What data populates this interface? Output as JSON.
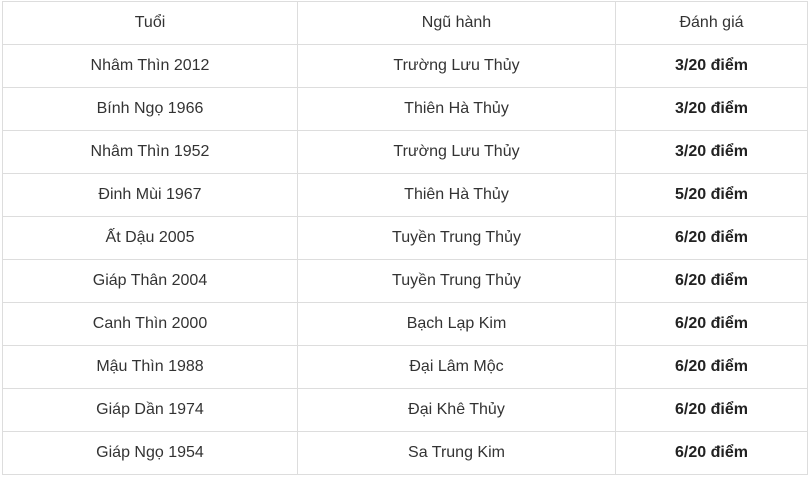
{
  "table": {
    "headers": [
      "Tuổi",
      "Ngũ hành",
      "Đánh giá"
    ],
    "rows": [
      [
        "Nhâm Thìn 2012",
        "Trường Lưu Thủy",
        "3/20 điểm"
      ],
      [
        "Bính Ngọ 1966",
        "Thiên Hà Thủy",
        "3/20 điểm"
      ],
      [
        "Nhâm Thìn 1952",
        "Trường Lưu Thủy",
        "3/20 điểm"
      ],
      [
        "Đinh Mùi 1967",
        "Thiên Hà Thủy",
        "5/20 điểm"
      ],
      [
        "Ất Dậu 2005",
        "Tuyền Trung Thủy",
        "6/20 điểm"
      ],
      [
        "Giáp Thân 2004",
        "Tuyền Trung Thủy",
        "6/20 điểm"
      ],
      [
        "Canh Thìn 2000",
        "Bạch Lạp Kim",
        "6/20 điểm"
      ],
      [
        "Mậu Thìn 1988",
        "Đại Lâm Mộc",
        "6/20 điểm"
      ],
      [
        "Giáp Dần 1974",
        "Đại Khê Thủy",
        "6/20 điểm"
      ],
      [
        "Giáp Ngọ 1954",
        "Sa Trung Kim",
        "6/20 điểm"
      ]
    ]
  }
}
